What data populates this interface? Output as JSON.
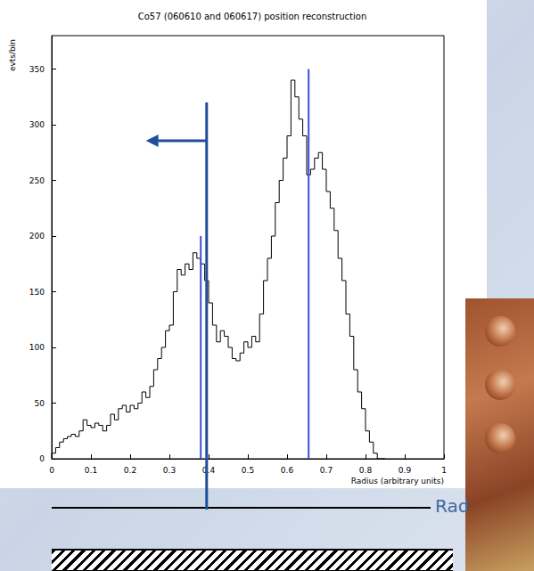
{
  "chart_data": {
    "type": "histogram",
    "title": "Co57 (060610 and 060617) position reconstruction",
    "x_label": "Radius (arbitrary units)",
    "y_label": "evts/bin",
    "bins": [
      0,
      0.01,
      0.02,
      0.03,
      0.04,
      0.05,
      0.06,
      0.07,
      0.08,
      0.09,
      0.1,
      0.11,
      0.12,
      0.13,
      0.14,
      0.15,
      0.16,
      0.17,
      0.18,
      0.19,
      0.2,
      0.21,
      0.22,
      0.23,
      0.24,
      0.25,
      0.26,
      0.27,
      0.28,
      0.29,
      0.3,
      0.31,
      0.32,
      0.33,
      0.34,
      0.35,
      0.36,
      0.37,
      0.38,
      0.39,
      0.4,
      0.41,
      0.42,
      0.43,
      0.44,
      0.45,
      0.46,
      0.47,
      0.48,
      0.49,
      0.5,
      0.51,
      0.52,
      0.53,
      0.54,
      0.55,
      0.56,
      0.57,
      0.58,
      0.59,
      0.6,
      0.61,
      0.62,
      0.63,
      0.64,
      0.65,
      0.66,
      0.67,
      0.68,
      0.69,
      0.7,
      0.71,
      0.72,
      0.73,
      0.74,
      0.75,
      0.76,
      0.77,
      0.78,
      0.79,
      0.8,
      0.81,
      0.82,
      0.83,
      0.84,
      0.85
    ],
    "counts": [
      5,
      10,
      15,
      18,
      20,
      22,
      20,
      25,
      35,
      30,
      28,
      32,
      30,
      25,
      30,
      40,
      35,
      45,
      48,
      42,
      48,
      45,
      50,
      60,
      55,
      65,
      80,
      90,
      100,
      115,
      120,
      150,
      170,
      165,
      175,
      170,
      185,
      180,
      175,
      160,
      140,
      120,
      105,
      115,
      110,
      100,
      90,
      88,
      95,
      105,
      100,
      110,
      105,
      130,
      160,
      180,
      200,
      230,
      250,
      270,
      290,
      340,
      325,
      305,
      290,
      255,
      260,
      270,
      275,
      260,
      240,
      225,
      205,
      180,
      160,
      130,
      110,
      80,
      60,
      45,
      25,
      15,
      5,
      0,
      0
    ],
    "color": "#000000",
    "xlim": [
      0,
      1
    ],
    "xticks": [
      0,
      0.1,
      0.2,
      0.3,
      0.4,
      0.5,
      0.6,
      0.7,
      0.8,
      0.9,
      1
    ],
    "ylim": [
      0,
      380
    ],
    "yticks": [
      0,
      50,
      100,
      150,
      200,
      250,
      300,
      350
    ],
    "grid": false,
    "markers": [
      {
        "x": 0.38,
        "y": 200,
        "color": "#3b4fd8"
      },
      {
        "x": 0.655,
        "y": 350,
        "color": "#3b4fd8"
      }
    ],
    "cut": {
      "x": 0.395,
      "arrow_to": 0.24,
      "color": "#1f4f9c"
    },
    "annotation": "Rad"
  }
}
